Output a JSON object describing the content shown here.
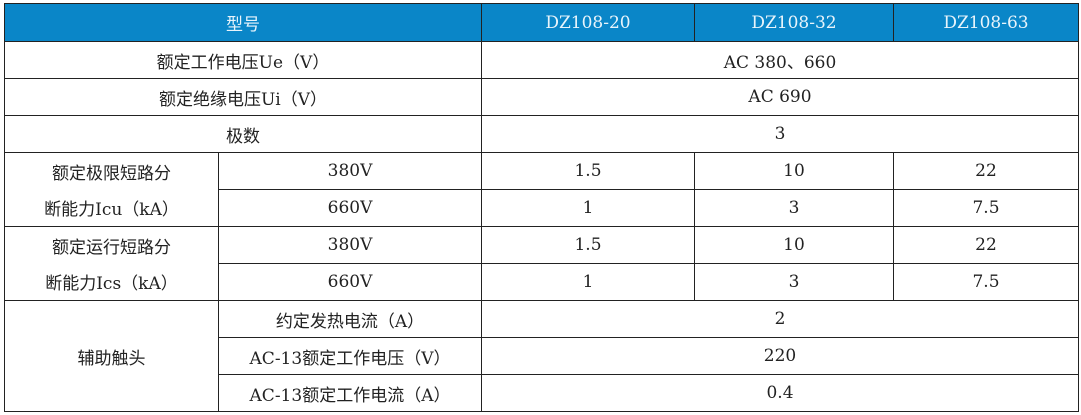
{
  "header": {
    "model_label": "型号",
    "models": [
      "DZ108-20",
      "DZ108-32",
      "DZ108-63"
    ],
    "header_color": "#0a86c8"
  },
  "rows": {
    "rated_voltage": {
      "label": "额定工作电压Ue（V）",
      "value": "AC 380、660"
    },
    "insulation_voltage": {
      "label": "额定绝缘电压Ui（V）",
      "value": "AC 690"
    },
    "poles": {
      "label": "极数",
      "value": "3"
    },
    "icu": {
      "label_line1": "额定极限短路分",
      "label_line2": "断能力Icu（kA）",
      "rows": [
        {
          "voltage": "380V",
          "values": [
            "1.5",
            "10",
            "22"
          ]
        },
        {
          "voltage": "660V",
          "values": [
            "1",
            "3",
            "7.5"
          ]
        }
      ]
    },
    "ics": {
      "label_line1": "额定运行短路分",
      "label_line2": "断能力Ics（kA）",
      "rows": [
        {
          "voltage": "380V",
          "values": [
            "1.5",
            "10",
            "22"
          ]
        },
        {
          "voltage": "660V",
          "values": [
            "1",
            "3",
            "7.5"
          ]
        }
      ]
    },
    "aux": {
      "label": "辅助触头",
      "rows": [
        {
          "label": "约定发热电流（A）",
          "value": "2"
        },
        {
          "label": "AC-13额定工作电压（V）",
          "value": "220"
        },
        {
          "label": "AC-13额定工作电流（A）",
          "value": "0.4"
        }
      ]
    }
  }
}
